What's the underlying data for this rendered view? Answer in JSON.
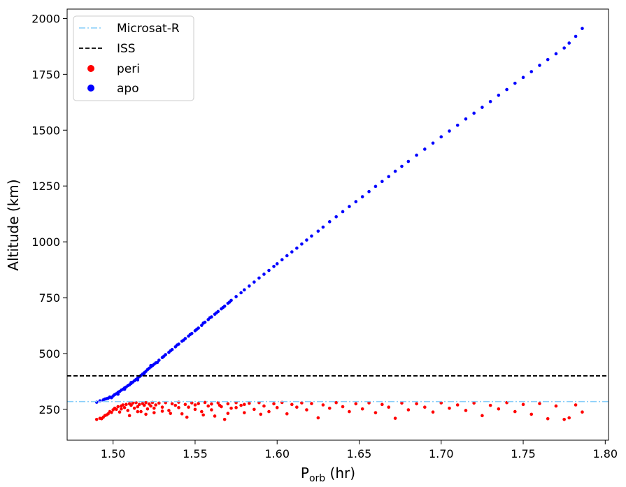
{
  "chart_data": {
    "type": "scatter",
    "xlabel_main": "P",
    "xlabel_sub": "orb",
    "xlabel_unit": " (hr)",
    "ylabel": "Altitude (km)",
    "xlim": [
      1.472,
      1.802
    ],
    "ylim": [
      112,
      2042
    ],
    "xticks": [
      1.5,
      1.55,
      1.6,
      1.65,
      1.7,
      1.75,
      1.8
    ],
    "xtick_labels": [
      "1.50",
      "1.55",
      "1.60",
      "1.65",
      "1.70",
      "1.75",
      "1.80"
    ],
    "yticks": [
      250,
      500,
      750,
      1000,
      1250,
      1500,
      1750,
      2000
    ],
    "ytick_labels": [
      "250",
      "500",
      "750",
      "1000",
      "1250",
      "1500",
      "1750",
      "2000"
    ],
    "grid": false,
    "legend_position": "upper-left",
    "hlines": [
      {
        "name": "Microsat-R",
        "y": 285,
        "color": "#87cefa",
        "style": "dashdot"
      },
      {
        "name": "ISS",
        "y": 400,
        "color": "#000000",
        "style": "dashed"
      }
    ],
    "series": [
      {
        "name": "peri",
        "color": "#ff0000",
        "points": [
          [
            1.49,
            205
          ],
          [
            1.492,
            210
          ],
          [
            1.494,
            215
          ],
          [
            1.495,
            222
          ],
          [
            1.497,
            230
          ],
          [
            1.498,
            240
          ],
          [
            1.5,
            248
          ],
          [
            1.501,
            255
          ],
          [
            1.502,
            250
          ],
          [
            1.503,
            262
          ],
          [
            1.504,
            238
          ],
          [
            1.505,
            265
          ],
          [
            1.506,
            270
          ],
          [
            1.507,
            258
          ],
          [
            1.508,
            272
          ],
          [
            1.509,
            245
          ],
          [
            1.51,
            275
          ],
          [
            1.511,
            268
          ],
          [
            1.512,
            278
          ],
          [
            1.513,
            255
          ],
          [
            1.514,
            280
          ],
          [
            1.515,
            262
          ],
          [
            1.516,
            272
          ],
          [
            1.517,
            240
          ],
          [
            1.518,
            276
          ],
          [
            1.519,
            268
          ],
          [
            1.52,
            280
          ],
          [
            1.521,
            252
          ],
          [
            1.522,
            274
          ],
          [
            1.523,
            265
          ],
          [
            1.524,
            281
          ],
          [
            1.525,
            235
          ],
          [
            1.526,
            270
          ],
          [
            1.528,
            278
          ],
          [
            1.53,
            260
          ],
          [
            1.532,
            280
          ],
          [
            1.534,
            245
          ],
          [
            1.536,
            275
          ],
          [
            1.538,
            268
          ],
          [
            1.54,
            282
          ],
          [
            1.542,
            230
          ],
          [
            1.544,
            272
          ],
          [
            1.546,
            260
          ],
          [
            1.548,
            279
          ],
          [
            1.55,
            250
          ],
          [
            1.552,
            276
          ],
          [
            1.554,
            240
          ],
          [
            1.556,
            281
          ],
          [
            1.558,
            265
          ],
          [
            1.56,
            274
          ],
          [
            1.562,
            220
          ],
          [
            1.564,
            279
          ],
          [
            1.566,
            262
          ],
          [
            1.568,
            205
          ],
          [
            1.57,
            275
          ],
          [
            1.572,
            255
          ],
          [
            1.575,
            280
          ],
          [
            1.578,
            268
          ],
          [
            1.58,
            235
          ],
          [
            1.583,
            277
          ],
          [
            1.586,
            250
          ],
          [
            1.589,
            280
          ],
          [
            1.592,
            265
          ],
          [
            1.595,
            240
          ],
          [
            1.598,
            275
          ],
          [
            1.6,
            258
          ],
          [
            1.603,
            281
          ],
          [
            1.606,
            230
          ],
          [
            1.609,
            272
          ],
          [
            1.612,
            260
          ],
          [
            1.615,
            279
          ],
          [
            1.618,
            248
          ],
          [
            1.621,
            276
          ],
          [
            1.625,
            212
          ],
          [
            1.628,
            270
          ],
          [
            1.632,
            255
          ],
          [
            1.636,
            280
          ],
          [
            1.64,
            262
          ],
          [
            1.644,
            240
          ],
          [
            1.648,
            275
          ],
          [
            1.652,
            252
          ],
          [
            1.656,
            279
          ],
          [
            1.66,
            235
          ],
          [
            1.664,
            272
          ],
          [
            1.668,
            260
          ],
          [
            1.672,
            210
          ],
          [
            1.676,
            278
          ],
          [
            1.68,
            248
          ],
          [
            1.685,
            275
          ],
          [
            1.69,
            260
          ],
          [
            1.695,
            238
          ],
          [
            1.7,
            279
          ],
          [
            1.705,
            255
          ],
          [
            1.71,
            270
          ],
          [
            1.715,
            245
          ],
          [
            1.72,
            278
          ],
          [
            1.725,
            222
          ],
          [
            1.73,
            268
          ],
          [
            1.735,
            252
          ],
          [
            1.74,
            280
          ],
          [
            1.745,
            240
          ],
          [
            1.75,
            272
          ],
          [
            1.755,
            228
          ],
          [
            1.76,
            276
          ],
          [
            1.765,
            208
          ],
          [
            1.77,
            265
          ],
          [
            1.775,
            205
          ],
          [
            1.778,
            212
          ],
          [
            1.782,
            270
          ],
          [
            1.786,
            238
          ],
          [
            1.493,
            208
          ],
          [
            1.496,
            225
          ],
          [
            1.499,
            236
          ],
          [
            1.505,
            252
          ],
          [
            1.51,
            222
          ],
          [
            1.515,
            240
          ],
          [
            1.52,
            228
          ],
          [
            1.525,
            255
          ],
          [
            1.53,
            242
          ],
          [
            1.535,
            232
          ],
          [
            1.54,
            258
          ],
          [
            1.545,
            215
          ],
          [
            1.55,
            270
          ],
          [
            1.555,
            225
          ],
          [
            1.56,
            248
          ],
          [
            1.565,
            268
          ],
          [
            1.57,
            232
          ],
          [
            1.575,
            258
          ],
          [
            1.58,
            272
          ],
          [
            1.59,
            228
          ]
        ]
      },
      {
        "name": "apo",
        "color": "#0000ff",
        "points": [
          [
            1.49,
            282
          ],
          [
            1.492,
            288
          ],
          [
            1.494,
            292
          ],
          [
            1.495,
            296
          ],
          [
            1.497,
            300
          ],
          [
            1.498,
            305
          ],
          [
            1.5,
            310
          ],
          [
            1.501,
            316
          ],
          [
            1.502,
            320
          ],
          [
            1.503,
            326
          ],
          [
            1.504,
            330
          ],
          [
            1.505,
            336
          ],
          [
            1.506,
            340
          ],
          [
            1.507,
            346
          ],
          [
            1.508,
            350
          ],
          [
            1.509,
            356
          ],
          [
            1.51,
            360
          ],
          [
            1.511,
            366
          ],
          [
            1.512,
            372
          ],
          [
            1.513,
            378
          ],
          [
            1.514,
            384
          ],
          [
            1.515,
            390
          ],
          [
            1.516,
            396
          ],
          [
            1.517,
            402
          ],
          [
            1.518,
            408
          ],
          [
            1.519,
            414
          ],
          [
            1.52,
            420
          ],
          [
            1.521,
            428
          ],
          [
            1.522,
            434
          ],
          [
            1.523,
            440
          ],
          [
            1.524,
            446
          ],
          [
            1.525,
            452
          ],
          [
            1.526,
            458
          ],
          [
            1.528,
            470
          ],
          [
            1.53,
            482
          ],
          [
            1.532,
            495
          ],
          [
            1.534,
            505
          ],
          [
            1.536,
            518
          ],
          [
            1.538,
            530
          ],
          [
            1.54,
            542
          ],
          [
            1.542,
            555
          ],
          [
            1.544,
            567
          ],
          [
            1.546,
            578
          ],
          [
            1.548,
            590
          ],
          [
            1.55,
            602
          ],
          [
            1.552,
            614
          ],
          [
            1.554,
            626
          ],
          [
            1.556,
            640
          ],
          [
            1.558,
            652
          ],
          [
            1.56,
            664
          ],
          [
            1.562,
            676
          ],
          [
            1.564,
            688
          ],
          [
            1.566,
            700
          ],
          [
            1.568,
            712
          ],
          [
            1.57,
            725
          ],
          [
            1.572,
            738
          ],
          [
            1.575,
            755
          ],
          [
            1.578,
            772
          ],
          [
            1.58,
            785
          ],
          [
            1.583,
            802
          ],
          [
            1.586,
            820
          ],
          [
            1.589,
            838
          ],
          [
            1.592,
            855
          ],
          [
            1.595,
            872
          ],
          [
            1.598,
            890
          ],
          [
            1.6,
            902
          ],
          [
            1.603,
            920
          ],
          [
            1.606,
            938
          ],
          [
            1.609,
            955
          ],
          [
            1.612,
            972
          ],
          [
            1.615,
            990
          ],
          [
            1.618,
            1008
          ],
          [
            1.621,
            1026
          ],
          [
            1.625,
            1048
          ],
          [
            1.628,
            1066
          ],
          [
            1.632,
            1090
          ],
          [
            1.636,
            1112
          ],
          [
            1.64,
            1135
          ],
          [
            1.644,
            1158
          ],
          [
            1.648,
            1180
          ],
          [
            1.652,
            1202
          ],
          [
            1.656,
            1225
          ],
          [
            1.66,
            1248
          ],
          [
            1.664,
            1270
          ],
          [
            1.668,
            1292
          ],
          [
            1.672,
            1316
          ],
          [
            1.676,
            1338
          ],
          [
            1.68,
            1360
          ],
          [
            1.685,
            1388
          ],
          [
            1.69,
            1415
          ],
          [
            1.695,
            1442
          ],
          [
            1.7,
            1470
          ],
          [
            1.705,
            1496
          ],
          [
            1.71,
            1522
          ],
          [
            1.715,
            1550
          ],
          [
            1.72,
            1576
          ],
          [
            1.725,
            1602
          ],
          [
            1.73,
            1628
          ],
          [
            1.735,
            1656
          ],
          [
            1.74,
            1682
          ],
          [
            1.745,
            1710
          ],
          [
            1.75,
            1736
          ],
          [
            1.755,
            1762
          ],
          [
            1.76,
            1790
          ],
          [
            1.765,
            1816
          ],
          [
            1.77,
            1842
          ],
          [
            1.775,
            1868
          ],
          [
            1.778,
            1890
          ],
          [
            1.782,
            1920
          ],
          [
            1.786,
            1955
          ],
          [
            1.496,
            298
          ],
          [
            1.499,
            302
          ],
          [
            1.503,
            318
          ],
          [
            1.507,
            340
          ],
          [
            1.511,
            370
          ],
          [
            1.515,
            382
          ],
          [
            1.519,
            410
          ],
          [
            1.523,
            446
          ],
          [
            1.527,
            460
          ],
          [
            1.531,
            488
          ],
          [
            1.535,
            512
          ],
          [
            1.539,
            538
          ],
          [
            1.543,
            560
          ],
          [
            1.547,
            585
          ],
          [
            1.551,
            608
          ],
          [
            1.555,
            636
          ],
          [
            1.559,
            660
          ],
          [
            1.563,
            682
          ],
          [
            1.567,
            706
          ],
          [
            1.571,
            730
          ]
        ]
      }
    ]
  }
}
